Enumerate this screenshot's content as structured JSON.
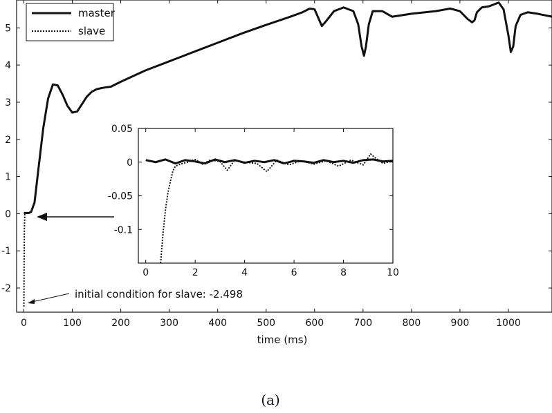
{
  "chart_data": [
    {
      "type": "line",
      "xlabel": "time (ms)",
      "ylabel": "",
      "xlim": [
        -15,
        1090
      ],
      "ylim": [
        -2.65,
        5.75
      ],
      "xticks": [
        0,
        100,
        200,
        300,
        400,
        500,
        600,
        700,
        800,
        900,
        1000
      ],
      "yticks": [
        -2,
        -1,
        0,
        1,
        2,
        3,
        4,
        5
      ],
      "legend": {
        "placement": "top-left",
        "entries": [
          "master",
          "slave"
        ]
      },
      "series": [
        {
          "name": "master",
          "style": "solid",
          "x": [
            0,
            10,
            15,
            22,
            30,
            40,
            50,
            60,
            70,
            80,
            90,
            100,
            110,
            120,
            130,
            140,
            150,
            160,
            170,
            180,
            200,
            250,
            300,
            350,
            400,
            450,
            500,
            550,
            575,
            590,
            600,
            610,
            615,
            625,
            640,
            660,
            680,
            690,
            697,
            702,
            706,
            712,
            720,
            740,
            760,
            800,
            850,
            880,
            900,
            915,
            925,
            930,
            935,
            945,
            960,
            980,
            990,
            1000,
            1005,
            1010,
            1015,
            1025,
            1040,
            1060,
            1090
          ],
          "y": [
            0.02,
            0.02,
            0.05,
            0.3,
            1.2,
            2.3,
            3.1,
            3.48,
            3.45,
            3.2,
            2.9,
            2.72,
            2.75,
            2.95,
            3.15,
            3.28,
            3.35,
            3.38,
            3.4,
            3.42,
            3.55,
            3.85,
            4.1,
            4.35,
            4.6,
            4.85,
            5.08,
            5.3,
            5.42,
            5.52,
            5.5,
            5.2,
            5.05,
            5.2,
            5.45,
            5.55,
            5.45,
            5.1,
            4.5,
            4.25,
            4.5,
            5.1,
            5.45,
            5.45,
            5.3,
            5.38,
            5.45,
            5.52,
            5.45,
            5.25,
            5.15,
            5.2,
            5.42,
            5.55,
            5.58,
            5.68,
            5.5,
            4.8,
            4.35,
            4.5,
            5.05,
            5.35,
            5.42,
            5.38,
            5.3
          ]
        },
        {
          "name": "slave",
          "style": "dotted",
          "x": [
            0,
            0.5,
            1,
            2,
            5,
            10,
            15,
            22,
            30,
            40,
            50,
            60,
            70,
            80,
            90,
            100,
            110,
            120,
            130,
            140,
            150,
            160,
            170,
            180,
            200,
            250,
            300,
            350,
            400,
            450,
            500,
            550,
            575,
            590,
            600,
            610,
            615,
            625,
            640,
            660,
            680,
            690,
            697,
            702,
            706,
            712,
            720,
            740,
            760,
            800,
            850,
            880,
            900,
            915,
            925,
            930,
            935,
            945,
            960,
            980,
            990,
            1000,
            1005,
            1010,
            1015,
            1025,
            1040,
            1060,
            1090
          ],
          "y": [
            -2.498,
            -1.4,
            -0.4,
            -0.02,
            0.0,
            0.02,
            0.05,
            0.3,
            1.2,
            2.3,
            3.1,
            3.48,
            3.45,
            3.2,
            2.9,
            2.72,
            2.75,
            2.95,
            3.15,
            3.28,
            3.35,
            3.38,
            3.4,
            3.42,
            3.55,
            3.85,
            4.1,
            4.35,
            4.6,
            4.85,
            5.08,
            5.3,
            5.42,
            5.52,
            5.5,
            5.2,
            5.05,
            5.2,
            5.45,
            5.55,
            5.45,
            5.1,
            4.5,
            4.25,
            4.5,
            5.1,
            5.45,
            5.45,
            5.3,
            5.38,
            5.45,
            5.52,
            5.45,
            5.25,
            5.15,
            5.2,
            5.42,
            5.55,
            5.58,
            5.68,
            5.5,
            4.8,
            4.35,
            4.5,
            5.05,
            5.35,
            5.42,
            5.38,
            5.3
          ]
        }
      ],
      "annotations": [
        {
          "text": "initial condition for slave: -2.498",
          "points_to": {
            "x": 0,
            "y": -2.498
          }
        },
        {
          "text": "",
          "arrow_points_to": {
            "x": 12,
            "y": 0
          }
        }
      ]
    },
    {
      "type": "line",
      "xlim": [
        -0.3,
        10
      ],
      "ylim": [
        -0.15,
        0.05
      ],
      "xticks": [
        0,
        2,
        4,
        6,
        8,
        10
      ],
      "yticks": [
        0.05,
        0,
        -0.05,
        -0.1
      ],
      "ytick_labels": [
        "0.05",
        "0",
        "-0.05",
        "-0.1"
      ],
      "series": [
        {
          "name": "master",
          "style": "solid",
          "x": [
            0,
            0.4,
            0.8,
            1.2,
            1.6,
            2.0,
            2.4,
            2.8,
            3.2,
            3.6,
            4.0,
            4.4,
            4.8,
            5.2,
            5.6,
            6.0,
            6.4,
            6.8,
            7.2,
            7.6,
            8.0,
            8.4,
            8.8,
            9.2,
            9.6,
            10
          ],
          "y": [
            0.003,
            0.0,
            0.004,
            -0.002,
            0.003,
            0.001,
            -0.002,
            0.004,
            0.0,
            0.003,
            -0.001,
            0.002,
            0.0,
            0.003,
            -0.002,
            0.002,
            0.001,
            -0.001,
            0.003,
            0.0,
            0.002,
            -0.001,
            0.003,
            0.004,
            0.001,
            0.002
          ]
        },
        {
          "name": "slave",
          "style": "dotted",
          "x": [
            0.6,
            0.7,
            0.8,
            0.9,
            1.0,
            1.1,
            1.2,
            1.4,
            1.7,
            2.0,
            2.3,
            2.6,
            3.0,
            3.3,
            3.6,
            4.0,
            4.5,
            4.9,
            5.3,
            5.8,
            6.3,
            6.8,
            7.3,
            7.8,
            8.3,
            8.8,
            9.1,
            9.3,
            9.6,
            10
          ],
          "y": [
            -0.15,
            -0.105,
            -0.07,
            -0.045,
            -0.028,
            -0.013,
            -0.006,
            -0.003,
            0.0,
            0.004,
            -0.003,
            0.003,
            0.001,
            -0.012,
            0.003,
            0.0,
            -0.002,
            -0.014,
            0.003,
            -0.004,
            0.002,
            -0.003,
            0.002,
            -0.006,
            0.003,
            -0.004,
            0.012,
            0.006,
            -0.002,
            0.002
          ]
        }
      ]
    }
  ],
  "caption": "(a)"
}
